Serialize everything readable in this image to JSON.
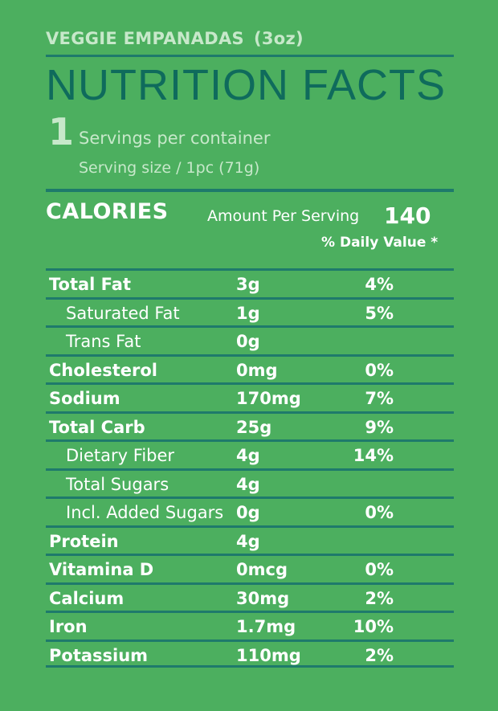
{
  "product": {
    "name": "VEGGIE EMPANADAS",
    "size": "(3oz)"
  },
  "title": "NUTRITION FACTS",
  "servings": {
    "count": "1",
    "per_container_label": "Servings per container",
    "serving_size": "Serving size / 1pc (71g)"
  },
  "calories": {
    "label": "CALORIES",
    "amount_label": "Amount Per Serving",
    "amount": "140",
    "daily_value_label": "% Daily Value *"
  },
  "nutrients": [
    {
      "name": "Total Fat",
      "amount": "3g",
      "dv": "4%",
      "sub": false
    },
    {
      "name": "Saturated Fat",
      "amount": "1g",
      "dv": "5%",
      "sub": true
    },
    {
      "name": "Trans Fat",
      "amount": "0g",
      "dv": "",
      "sub": true
    },
    {
      "name": "Cholesterol",
      "amount": "0mg",
      "dv": "0%",
      "sub": false
    },
    {
      "name": "Sodium",
      "amount": "170mg",
      "dv": "7%",
      "sub": false
    },
    {
      "name": "Total Carb",
      "amount": "25g",
      "dv": "9%",
      "sub": false
    },
    {
      "name": "Dietary Fiber",
      "amount": "4g",
      "dv": "14%",
      "sub": true
    },
    {
      "name": "Total Sugars",
      "amount": "4g",
      "dv": "",
      "sub": true
    },
    {
      "name": "Incl. Added Sugars",
      "amount": "0g",
      "dv": "0%",
      "sub": true
    },
    {
      "name": "Protein",
      "amount": "4g",
      "dv": "",
      "sub": false
    },
    {
      "name": "Vitamina D",
      "amount": "0mcg",
      "dv": "0%",
      "sub": false
    },
    {
      "name": "Calcium",
      "amount": "30mg",
      "dv": "2%",
      "sub": false
    },
    {
      "name": "Iron",
      "amount": "1.7mg",
      "dv": "10%",
      "sub": false
    },
    {
      "name": "Potassium",
      "amount": "110mg",
      "dv": "2%",
      "sub": false
    }
  ],
  "colors": {
    "background": "#4caf5f",
    "rule": "#1e7a6b",
    "title": "#0f6b5c",
    "light_text": "#c7e8ca"
  }
}
